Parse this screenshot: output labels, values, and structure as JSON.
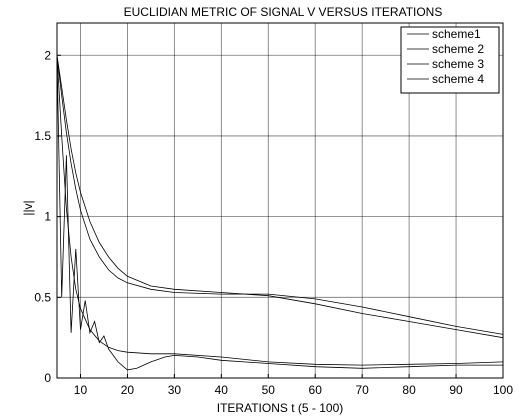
{
  "chart_data": {
    "type": "line",
    "title": "EUCLIDIAN METRIC OF SIGNAL V VERSUS ITERATIONS",
    "xlabel": "ITERATIONS t (5 - 100)",
    "ylabel": "||v|",
    "xlim": [
      5,
      100
    ],
    "ylim": [
      0,
      2.2
    ],
    "xticks": [
      10,
      20,
      30,
      40,
      50,
      60,
      70,
      80,
      90,
      100
    ],
    "yticks": [
      0,
      0.5,
      1,
      1.5,
      2
    ],
    "ytick_labels": [
      "0",
      "0.5",
      "1",
      "1.5",
      "2"
    ],
    "grid": true,
    "legend_position": "top-right",
    "series": [
      {
        "name": "scheme1",
        "x": [
          5,
          6,
          7,
          8,
          9,
          10,
          12,
          14,
          16,
          18,
          20,
          25,
          30,
          40,
          50,
          60,
          70,
          80,
          90,
          100
        ],
        "y": [
          2.0,
          1.8,
          1.6,
          1.42,
          1.27,
          1.15,
          0.97,
          0.84,
          0.75,
          0.68,
          0.63,
          0.57,
          0.55,
          0.53,
          0.51,
          0.46,
          0.4,
          0.35,
          0.3,
          0.25
        ]
      },
      {
        "name": "scheme 2",
        "x": [
          5,
          6,
          7,
          8,
          9,
          10,
          12,
          14,
          16,
          18,
          20,
          25,
          30,
          40,
          50,
          60,
          70,
          80,
          90,
          100
        ],
        "y": [
          2.0,
          1.75,
          1.52,
          1.33,
          1.17,
          1.04,
          0.86,
          0.75,
          0.67,
          0.62,
          0.59,
          0.55,
          0.53,
          0.52,
          0.52,
          0.49,
          0.44,
          0.38,
          0.32,
          0.27
        ]
      },
      {
        "name": "scheme 3",
        "x": [
          5,
          6,
          7,
          8,
          9,
          10,
          12,
          14,
          16,
          18,
          20,
          25,
          30,
          40,
          50,
          60,
          70,
          80,
          90,
          100
        ],
        "y": [
          2.0,
          1.5,
          1.05,
          0.75,
          0.55,
          0.43,
          0.3,
          0.23,
          0.19,
          0.17,
          0.16,
          0.15,
          0.15,
          0.13,
          0.1,
          0.085,
          0.08,
          0.085,
          0.09,
          0.1
        ]
      },
      {
        "name": "scheme 4",
        "x": [
          5,
          6,
          7,
          8,
          9,
          10,
          11,
          12,
          13,
          14,
          15,
          16,
          17,
          18,
          20,
          22,
          25,
          28,
          30,
          35,
          40,
          50,
          60,
          70,
          80,
          90,
          100
        ],
        "y": [
          2.0,
          0.5,
          1.38,
          0.28,
          0.8,
          0.3,
          0.48,
          0.28,
          0.35,
          0.22,
          0.26,
          0.18,
          0.14,
          0.1,
          0.05,
          0.06,
          0.1,
          0.13,
          0.14,
          0.13,
          0.11,
          0.09,
          0.07,
          0.06,
          0.07,
          0.08,
          0.08
        ]
      }
    ]
  }
}
